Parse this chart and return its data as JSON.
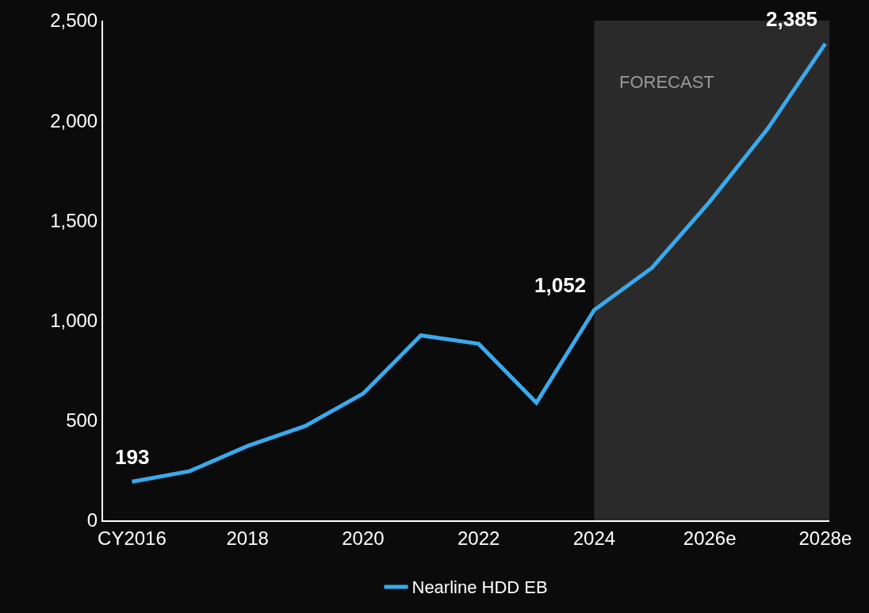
{
  "chart_data": {
    "type": "line",
    "categories": [
      "CY2016",
      null,
      "2018",
      null,
      "2020",
      null,
      "2022",
      null,
      "2024",
      null,
      "2026e",
      null,
      "2028e"
    ],
    "series": [
      {
        "name": "Nearline HDD EB",
        "color": "#3ba9ec",
        "values": [
          193,
          246,
          372,
          472,
          634,
          925,
          883,
          588,
          1052,
          1263,
          1594,
          1958,
          2385
        ],
        "value_labels": [
          "193",
          null,
          null,
          null,
          null,
          null,
          null,
          null,
          "1,052",
          null,
          null,
          null,
          "2,385"
        ]
      }
    ],
    "ylim": [
      0,
      2500
    ],
    "yticks": [
      {
        "value": 0,
        "label": "0"
      },
      {
        "value": 500,
        "label": "500"
      },
      {
        "value": 1000,
        "label": "1,000"
      },
      {
        "value": 1500,
        "label": "1,500"
      },
      {
        "value": 2000,
        "label": "2,000"
      },
      {
        "value": 2500,
        "label": "2,500"
      }
    ],
    "bands": [
      {
        "axis": "x",
        "from": "2024",
        "to": "2028e",
        "label": "FORECAST",
        "color": "#2a2a2a"
      }
    ],
    "grid": false,
    "legend": "bottom",
    "marker": "none",
    "line_style": "solid"
  }
}
